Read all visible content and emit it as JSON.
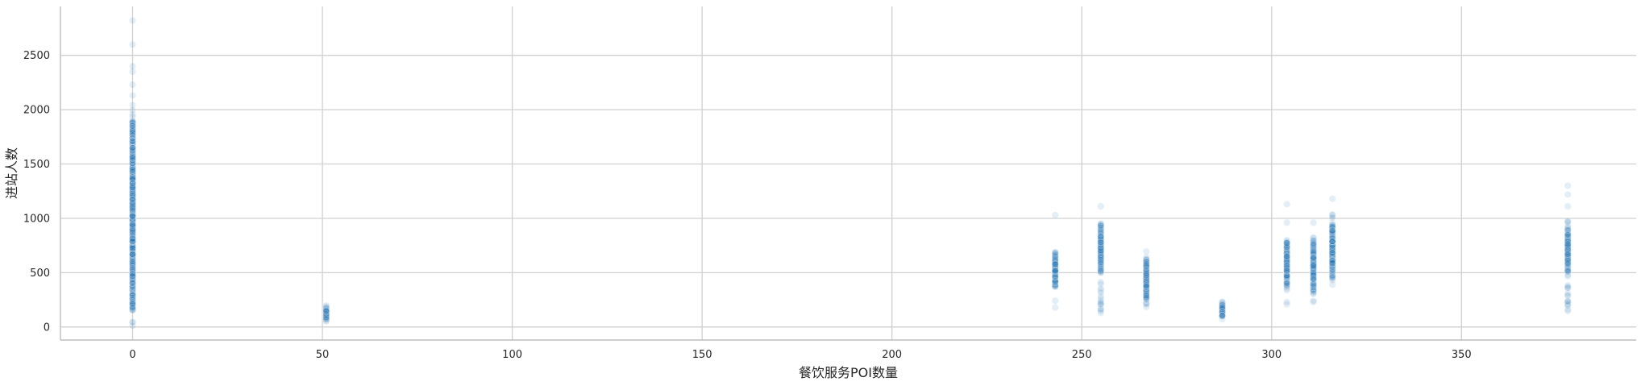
{
  "chart_data": {
    "type": "scatter",
    "xlabel": "餐饮服务POI数量",
    "ylabel": "进站人数",
    "xlim": [
      -19,
      396
    ],
    "ylim": [
      -120,
      2950
    ],
    "xticks": [
      0,
      50,
      100,
      150,
      200,
      250,
      300,
      350
    ],
    "yticks": [
      0,
      500,
      1000,
      1500,
      2000,
      2500
    ],
    "grid": true,
    "point_color": "#1f77b4",
    "point_opacity": 0.12,
    "clusters": [
      {
        "x": 0,
        "y_min": 0,
        "y_max": 2050,
        "dense_min": 150,
        "dense_max": 1950,
        "outliers": [
          2130,
          2230,
          2350,
          2400,
          2600,
          2820
        ]
      },
      {
        "x": 51,
        "y_min": 50,
        "y_max": 200,
        "dense_min": 70,
        "dense_max": 170,
        "outliers": []
      },
      {
        "x": 243,
        "y_min": 170,
        "y_max": 700,
        "dense_min": 370,
        "dense_max": 690,
        "outliers": [
          1030
        ]
      },
      {
        "x": 255,
        "y_min": 110,
        "y_max": 980,
        "dense_min": 500,
        "dense_max": 940,
        "outliers": [
          1110
        ]
      },
      {
        "x": 267,
        "y_min": 170,
        "y_max": 700,
        "dense_min": 250,
        "dense_max": 620,
        "outliers": []
      },
      {
        "x": 287,
        "y_min": 70,
        "y_max": 240,
        "dense_min": 90,
        "dense_max": 210,
        "outliers": []
      },
      {
        "x": 304,
        "y_min": 180,
        "y_max": 820,
        "dense_min": 350,
        "dense_max": 790,
        "outliers": [
          960,
          1130
        ]
      },
      {
        "x": 311,
        "y_min": 220,
        "y_max": 850,
        "dense_min": 300,
        "dense_max": 800,
        "outliers": [
          960
        ]
      },
      {
        "x": 316,
        "y_min": 380,
        "y_max": 1050,
        "dense_min": 430,
        "dense_max": 960,
        "outliers": [
          1180
        ]
      },
      {
        "x": 378,
        "y_min": 120,
        "y_max": 1000,
        "dense_min": 500,
        "dense_max": 900,
        "outliers": [
          1110,
          1220,
          1300
        ]
      }
    ]
  }
}
